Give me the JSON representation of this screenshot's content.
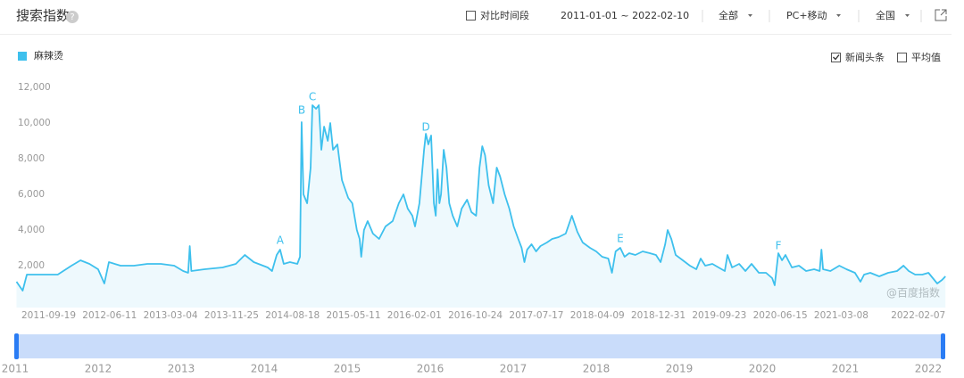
{
  "header": {
    "title": "搜索指数",
    "compare": "对比时间段",
    "date_range": "2011-01-01 ~ 2022-02-10",
    "source": "全部",
    "device": "PC+移动",
    "region": "全国"
  },
  "options": {
    "news": "新闻头条",
    "news_checked": true,
    "average": "平均值",
    "average_checked": false
  },
  "watermark": "@百度指数",
  "navigator": {
    "years": [
      2011,
      2012,
      2013,
      2014,
      2015,
      2016,
      2017,
      2018,
      2019,
      2020,
      2021,
      2022
    ]
  },
  "chart_data": {
    "type": "line",
    "x": [
      "2011-01-03",
      "2011-01-30",
      "2011-02-17",
      "2011-05-05",
      "2011-07-02",
      "2011-08-31",
      "2011-10-09",
      "2011-11-17",
      "2011-12-25",
      "2012-01-21",
      "2012-02-10",
      "2012-04-01",
      "2012-05-29",
      "2012-07-27",
      "2012-09-24",
      "2012-11-21",
      "2012-12-30",
      "2013-01-21",
      "2013-01-28",
      "2013-02-04",
      "2013-04-03",
      "2013-06-20",
      "2013-08-17",
      "2013-09-25",
      "2013-11-03",
      "2014-01-03",
      "2014-01-22",
      "2014-02-11",
      "2014-02-26",
      "2014-03-14",
      "2014-04-10",
      "2014-05-12",
      "2014-05-24",
      "2014-05-31",
      "2014-06-08",
      "2014-06-24",
      "2014-07-09",
      "2014-07-17",
      "2014-08-02",
      "2014-08-14",
      "2014-08-25",
      "2014-09-06",
      "2014-09-22",
      "2014-10-03",
      "2014-10-15",
      "2014-11-03",
      "2014-11-23",
      "2014-12-20",
      "2015-01-07",
      "2015-01-27",
      "2015-02-08",
      "2015-02-15",
      "2015-02-27",
      "2015-03-15",
      "2015-04-07",
      "2015-05-04",
      "2015-06-01",
      "2015-07-02",
      "2015-07-29",
      "2015-08-18",
      "2015-09-06",
      "2015-09-26",
      "2015-10-08",
      "2015-10-27",
      "2015-11-16",
      "2015-11-24",
      "2015-12-05",
      "2015-12-17",
      "2015-12-29",
      "2016-01-06",
      "2016-01-14",
      "2016-01-22",
      "2016-01-29",
      "2016-02-10",
      "2016-02-22",
      "2016-03-05",
      "2016-03-20",
      "2016-04-09",
      "2016-04-28",
      "2016-05-22",
      "2016-06-10",
      "2016-06-30",
      "2016-07-15",
      "2016-07-27",
      "2016-08-08",
      "2016-08-24",
      "2016-09-12",
      "2016-09-28",
      "2016-10-13",
      "2016-11-02",
      "2016-11-22",
      "2016-12-11",
      "2016-12-31",
      "2017-01-15",
      "2017-01-27",
      "2017-02-08",
      "2017-02-27",
      "2017-03-19",
      "2017-04-07",
      "2017-05-05",
      "2017-05-28",
      "2017-06-25",
      "2017-07-26",
      "2017-08-22",
      "2017-09-15",
      "2017-10-08",
      "2017-11-09",
      "2017-12-06",
      "2018-01-01",
      "2018-01-28",
      "2018-02-13",
      "2018-03-01",
      "2018-03-21",
      "2018-04-09",
      "2018-04-29",
      "2018-05-26",
      "2018-06-27",
      "2018-07-28",
      "2018-08-24",
      "2018-09-13",
      "2018-10-03",
      "2018-10-14",
      "2018-10-30",
      "2018-11-18",
      "2018-12-19",
      "2019-01-19",
      "2019-02-16",
      "2019-03-07",
      "2019-03-27",
      "2019-04-27",
      "2019-05-24",
      "2019-06-20",
      "2019-07-02",
      "2019-07-22",
      "2019-08-22",
      "2019-09-18",
      "2019-10-15",
      "2019-11-16",
      "2019-12-17",
      "2020-01-13",
      "2020-01-24",
      "2020-02-09",
      "2020-02-25",
      "2020-03-11",
      "2020-04-08",
      "2020-05-09",
      "2020-06-09",
      "2020-07-14",
      "2020-08-07",
      "2020-08-15",
      "2020-08-22",
      "2020-09-23",
      "2020-11-01",
      "2020-12-02",
      "2021-01-08",
      "2021-02-01",
      "2021-02-17",
      "2021-03-16",
      "2021-04-24",
      "2021-06-02",
      "2021-07-11",
      "2021-08-08",
      "2021-08-31",
      "2021-09-28",
      "2021-10-29",
      "2021-11-25",
      "2022-01-02",
      "2022-01-23",
      "2022-02-07"
    ],
    "series": [
      {
        "name": "麻辣烫",
        "color": "#3ec0ed",
        "values": [
          1100,
          600,
          1500,
          1500,
          1500,
          2000,
          2300,
          2100,
          1800,
          1000,
          2200,
          2000,
          2000,
          2100,
          2100,
          2000,
          1700,
          1600,
          3100,
          1700,
          1800,
          1900,
          2100,
          2600,
          2200,
          1900,
          1700,
          2600,
          2900,
          2100,
          2200,
          2100,
          2500,
          10050,
          6000,
          5500,
          7500,
          11000,
          10800,
          11000,
          8500,
          9800,
          9000,
          10000,
          8500,
          8800,
          6800,
          5800,
          5500,
          4000,
          3500,
          2500,
          4000,
          4500,
          3800,
          3500,
          4200,
          4500,
          5500,
          6000,
          5200,
          4800,
          4200,
          5500,
          8500,
          9400,
          8800,
          9300,
          5500,
          4800,
          7400,
          5500,
          6000,
          8500,
          7500,
          5500,
          4800,
          4200,
          5200,
          5700,
          5000,
          4800,
          7500,
          8700,
          8200,
          6500,
          5500,
          7500,
          7000,
          6000,
          5200,
          4200,
          3500,
          3000,
          2200,
          2900,
          3200,
          2800,
          3100,
          3300,
          3500,
          3600,
          3800,
          4800,
          3900,
          3300,
          3000,
          2800,
          2500,
          2400,
          1600,
          2800,
          3000,
          2500,
          2700,
          2600,
          2800,
          2700,
          2600,
          2200,
          3200,
          4000,
          3500,
          2600,
          2300,
          2000,
          1800,
          2400,
          2000,
          2100,
          1900,
          1700,
          2600,
          1900,
          2100,
          1700,
          2100,
          1600,
          1600,
          1300,
          900,
          2700,
          2300,
          2600,
          1900,
          2000,
          1700,
          1800,
          1700,
          2900,
          1800,
          1700,
          2000,
          1800,
          1600,
          1100,
          1500,
          1600,
          1400,
          1600,
          1700,
          2000,
          1700,
          1500,
          1500,
          1600,
          1000,
          1200,
          1400
        ]
      }
    ],
    "xlim": [
      "2011-01-01",
      "2022-02-10"
    ],
    "xticks": [
      "2011-09-19",
      "2012-06-11",
      "2013-03-04",
      "2013-11-25",
      "2014-08-18",
      "2015-05-11",
      "2016-02-01",
      "2016-10-24",
      "2017-07-17",
      "2018-04-09",
      "2018-12-31",
      "2019-09-23",
      "2020-06-15",
      "2021-03-08",
      "2022-02-07"
    ],
    "ylim": [
      0,
      12000
    ],
    "yticks": [
      {
        "value": 2000,
        "label": "2,000"
      },
      {
        "value": 4000,
        "label": "4,000"
      },
      {
        "value": 6000,
        "label": "6,000"
      },
      {
        "value": 8000,
        "label": "8,000"
      },
      {
        "value": 10000,
        "label": "10,000"
      },
      {
        "value": 12000,
        "label": "12,000"
      }
    ],
    "grid": false,
    "annotations": [
      {
        "text": "A",
        "x": "2014-02-26",
        "y": 3400
      },
      {
        "text": "B",
        "x": "2014-05-31",
        "y": 10700
      },
      {
        "text": "C",
        "x": "2014-07-17",
        "y": 11450
      },
      {
        "text": "D",
        "x": "2015-11-24",
        "y": 9750
      },
      {
        "text": "E",
        "x": "2018-03-21",
        "y": 3500
      },
      {
        "text": "F",
        "x": "2020-02-09",
        "y": 3100
      }
    ]
  }
}
